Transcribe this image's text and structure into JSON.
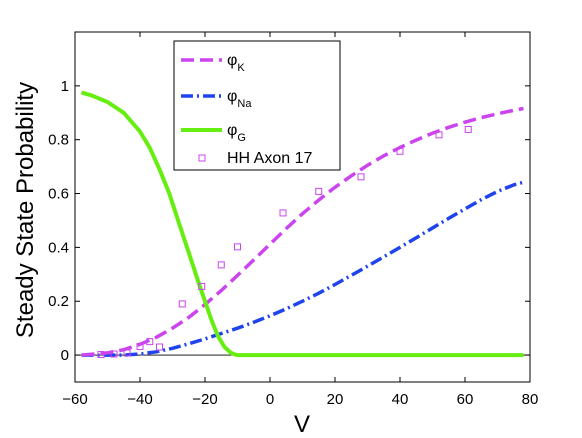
{
  "chart_data": {
    "type": "line",
    "title": "",
    "xlabel": "V",
    "ylabel": "Steady State Probability",
    "xlim": [
      -60,
      80
    ],
    "ylim": [
      -0.1,
      1.2
    ],
    "xticks": [
      -60,
      -40,
      -20,
      0,
      20,
      40,
      60,
      80
    ],
    "xtick_labels": [
      "−60",
      "−40",
      "−20",
      "0",
      "20",
      "40",
      "60",
      "80"
    ],
    "yticks": [
      0,
      0.2,
      0.4,
      0.6,
      0.8,
      1
    ],
    "ytick_labels": [
      "0",
      "0.2",
      "0.4",
      "0.6",
      "0.8",
      "1"
    ],
    "grid": false,
    "legend_position": "top-center",
    "zero_line": true,
    "series": [
      {
        "name": "φ",
        "subscript": "K",
        "style": "dashed",
        "color": "#cc44ee",
        "x": [
          -58,
          -50,
          -45,
          -40,
          -35,
          -30,
          -25,
          -20,
          -15,
          -10,
          -5,
          0,
          5,
          10,
          15,
          20,
          25,
          30,
          35,
          40,
          45,
          50,
          55,
          60,
          65,
          70,
          75,
          78
        ],
        "y": [
          0.0,
          0.008,
          0.02,
          0.04,
          0.066,
          0.1,
          0.14,
          0.188,
          0.24,
          0.296,
          0.354,
          0.412,
          0.47,
          0.525,
          0.576,
          0.623,
          0.666,
          0.705,
          0.74,
          0.771,
          0.799,
          0.824,
          0.846,
          0.865,
          0.882,
          0.896,
          0.909,
          0.916
        ]
      },
      {
        "name": "φ",
        "subscript": "Na",
        "style": "dashdot",
        "color": "#1f44ee",
        "x": [
          -58,
          -45,
          -40,
          -35,
          -30,
          -25,
          -20,
          -15,
          -10,
          -5,
          0,
          5,
          10,
          15,
          20,
          25,
          30,
          35,
          40,
          45,
          50,
          55,
          60,
          65,
          70,
          75,
          78
        ],
        "y": [
          0.0,
          0.0,
          0.004,
          0.012,
          0.025,
          0.042,
          0.06,
          0.08,
          0.1,
          0.122,
          0.146,
          0.172,
          0.2,
          0.23,
          0.262,
          0.296,
          0.33,
          0.365,
          0.4,
          0.436,
          0.472,
          0.508,
          0.543,
          0.577,
          0.608,
          0.632,
          0.642
        ]
      },
      {
        "name": "φ",
        "subscript": "G",
        "style": "solid",
        "color": "#66ee11",
        "x": [
          -58,
          -55,
          -50,
          -45,
          -40,
          -37,
          -34,
          -31,
          -28,
          -25,
          -22,
          -20,
          -18,
          -16,
          -14,
          -12,
          -11,
          -10,
          -8,
          0,
          20,
          40,
          60,
          78
        ],
        "y": [
          0.975,
          0.965,
          0.94,
          0.9,
          0.83,
          0.77,
          0.69,
          0.6,
          0.49,
          0.38,
          0.27,
          0.2,
          0.13,
          0.07,
          0.03,
          0.008,
          0.003,
          0.0,
          0.0,
          0.0,
          0.0,
          0.0,
          0.0,
          0.0
        ]
      },
      {
        "name": "HH Axon 17",
        "style": "markers",
        "marker": "square",
        "color": "#cc44ee",
        "x": [
          -52,
          -48,
          -44,
          -40,
          -37,
          -34,
          -27,
          -21,
          -15,
          -10,
          4,
          15,
          28,
          40,
          52,
          61
        ],
        "y": [
          0.002,
          0.004,
          0.008,
          0.032,
          0.05,
          0.03,
          0.19,
          0.255,
          0.335,
          0.402,
          0.528,
          0.608,
          0.662,
          0.757,
          0.818,
          0.838
        ]
      }
    ]
  }
}
